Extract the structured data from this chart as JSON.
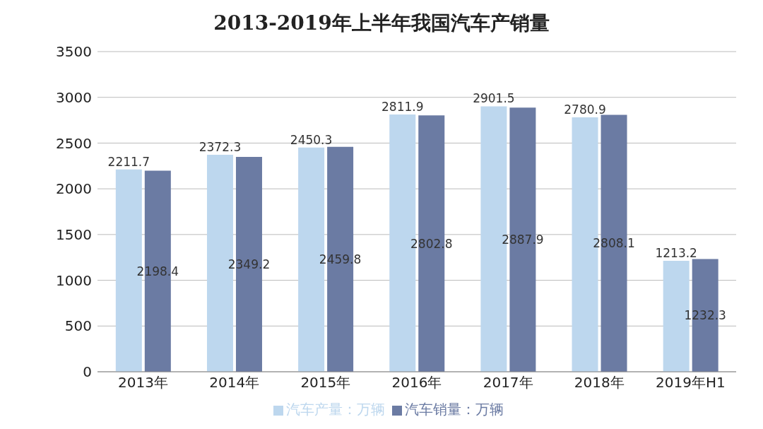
{
  "chart_data": {
    "type": "bar",
    "title": "2013-2019年上半年我国汽车产销量",
    "categories": [
      "2013年",
      "2014年",
      "2015年",
      "2016年",
      "2017年",
      "2018年",
      "2019年H1"
    ],
    "series": [
      {
        "name": "汽车产量：万辆",
        "color": "#bdd7ee",
        "values": [
          2211.7,
          2372.3,
          2450.3,
          2811.9,
          2901.5,
          2780.9,
          1213.2
        ]
      },
      {
        "name": "汽车销量：万辆",
        "color": "#6b7ba3",
        "values": [
          2198.4,
          2349.2,
          2459.8,
          2802.8,
          2887.9,
          2808.1,
          1232.3
        ]
      }
    ],
    "ylim": [
      0,
      3500
    ],
    "yticks": [
      0,
      500,
      1000,
      1500,
      2000,
      2500,
      3000,
      3500
    ],
    "grid": "y",
    "legend": "bottom",
    "data_labels": true
  }
}
